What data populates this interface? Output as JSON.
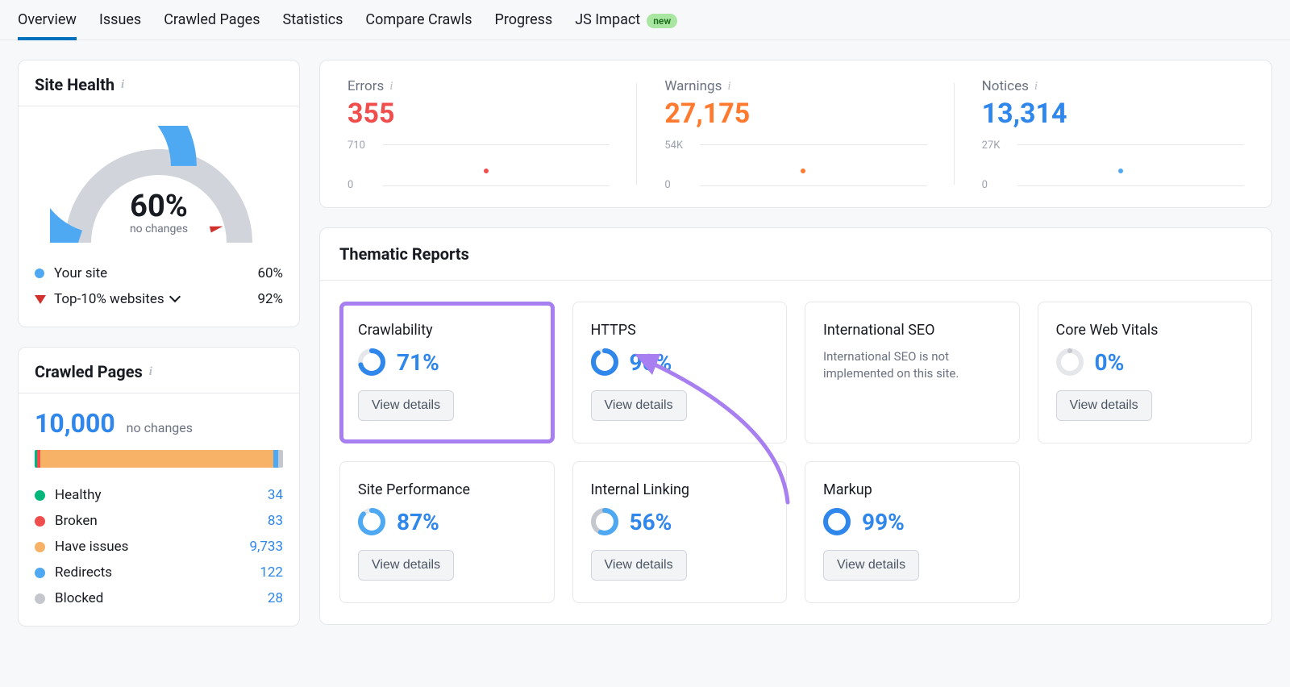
{
  "tabs": {
    "items": [
      "Overview",
      "Issues",
      "Crawled Pages",
      "Statistics",
      "Compare Crawls",
      "Progress",
      "JS Impact"
    ],
    "active_index": 0,
    "new_badge": "new",
    "new_badge_on": 6
  },
  "site_health": {
    "title": "Site Health",
    "pct": "60%",
    "pct_num": 60,
    "subtitle": "no changes",
    "gauge": {
      "stroke_width": 32,
      "fill_color": "#4fa8f2",
      "empty_color": "#d1d5db",
      "marker_color": "#d0312d",
      "marker_pct": 92
    },
    "legend": [
      {
        "type": "dot",
        "color": "#4fa8f2",
        "label": "Your site",
        "value": "60%"
      },
      {
        "type": "tri",
        "color": "#d0312d",
        "label": "Top-10% websites",
        "value": "92%",
        "dropdown": true
      }
    ]
  },
  "crawled_pages": {
    "title": "Crawled Pages",
    "total": "10,000",
    "subtitle": "no changes",
    "segments": [
      {
        "label": "Healthy",
        "color": "#00b67a",
        "value": 34,
        "width_pct": 1.0
      },
      {
        "label": "Broken",
        "color": "#f04d4d",
        "value": 83,
        "width_pct": 1.2
      },
      {
        "label": "Have issues",
        "color": "#f7b267",
        "value": 9733,
        "width_pct": 94.0
      },
      {
        "label": "Redirects",
        "color": "#4fa8f2",
        "value": 122,
        "width_pct": 1.8
      },
      {
        "label": "Blocked",
        "color": "#c4c8ce",
        "value": 28,
        "width_pct": 2.0
      }
    ]
  },
  "metrics": {
    "errors": {
      "label": "Errors",
      "value": "355",
      "top_tick": "710",
      "bot_tick": "0",
      "point_color": "#f04d4d"
    },
    "warnings": {
      "label": "Warnings",
      "value": "27,175",
      "top_tick": "54K",
      "bot_tick": "0",
      "point_color": "#ff7a2e"
    },
    "notices": {
      "label": "Notices",
      "value": "13,314",
      "top_tick": "27K",
      "bot_tick": "0",
      "point_color": "#4fa8f2"
    }
  },
  "thematic": {
    "title": "Thematic Reports",
    "view_label": "View details",
    "intl_msg": "International SEO is not implemented on this site.",
    "reports": [
      {
        "title": "Crawlability",
        "pct": "71%",
        "pct_num": 71,
        "ring_color": "#2f86eb",
        "highlight": true
      },
      {
        "title": "HTTPS",
        "pct": "90%",
        "pct_num": 90,
        "ring_color": "#2f86eb"
      },
      {
        "title": "International SEO",
        "msg_key": "intl_msg"
      },
      {
        "title": "Core Web Vitals",
        "pct": "0%",
        "pct_num": 0,
        "ring_color": "#c4c8ce"
      },
      {
        "title": "Site Performance",
        "pct": "87%",
        "pct_num": 87,
        "ring_color": "#4fa8f2"
      },
      {
        "title": "Internal Linking",
        "pct": "56%",
        "pct_num": 56,
        "ring_color": "#4fa8f2",
        "track_color": "#c4c8ce"
      },
      {
        "title": "Markup",
        "pct": "99%",
        "pct_num": 99,
        "ring_color": "#2f86eb"
      }
    ],
    "ring": {
      "size": 34,
      "stroke": 6,
      "track_color": "#e5e7eb"
    }
  },
  "annotation": {
    "arrow_color": "#a87ff0"
  }
}
